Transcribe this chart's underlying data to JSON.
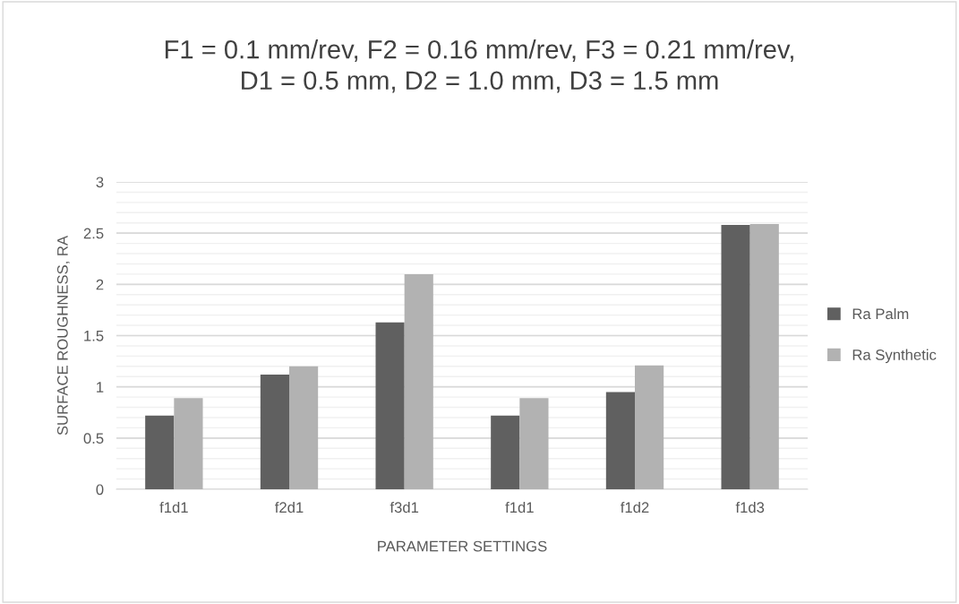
{
  "chart_data": {
    "type": "bar",
    "title": "F1 = 0.1 mm/rev, F2 = 0.16 mm/rev, F3 = 0.21 mm/rev,\nD1 = 0.5 mm, D2 = 1.0 mm, D3 = 1.5 mm",
    "xlabel": "PARAMETER SETTINGS",
    "ylabel": "SURFACE ROUGHNESS, RA",
    "categories": [
      "f1d1",
      "f2d1",
      "f3d1",
      "f1d1",
      "f1d2",
      "f1d3"
    ],
    "series": [
      {
        "name": "Ra Palm",
        "color": "#606060",
        "values": [
          0.72,
          1.12,
          1.63,
          0.72,
          0.95,
          2.58
        ]
      },
      {
        "name": "Ra Synthetic",
        "color": "#b2b2b2",
        "values": [
          0.89,
          1.2,
          2.1,
          0.89,
          1.21,
          2.59
        ]
      }
    ],
    "ylim": [
      0,
      3
    ],
    "yticks": [
      0,
      0.5,
      1,
      1.5,
      2,
      2.5,
      3
    ],
    "grid": "y",
    "legend": "right"
  }
}
